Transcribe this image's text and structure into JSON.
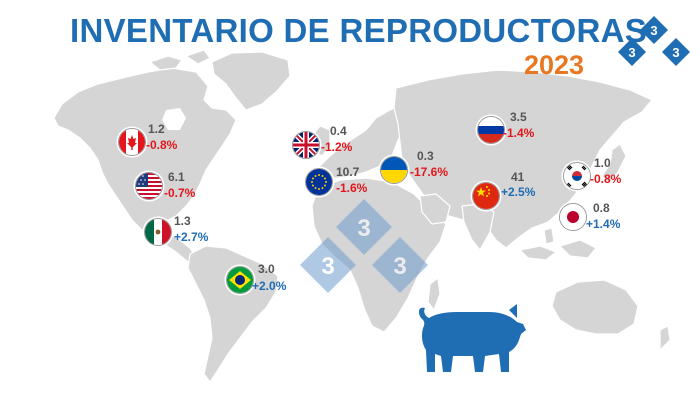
{
  "header": {
    "title": "INVENTARIO DE REPRODUCTORAS",
    "year": "2023"
  },
  "logo": {
    "digits": [
      "3",
      "3",
      "3"
    ],
    "color": "#1f6db3"
  },
  "colors": {
    "map_land": "#d5d5d5",
    "negative": "#e3161b",
    "positive": "#1f6db3",
    "value": "#555555",
    "title": "#1f6db3",
    "year": "#e87722"
  },
  "icons": {
    "pig": "pig-silhouette-icon",
    "watermark": "333-watermark-icon"
  },
  "countries": [
    {
      "country": "Canada",
      "flag": "canada-flag-icon",
      "value": "1.2",
      "change": "-0.8%",
      "direction": "negative"
    },
    {
      "country": "United States",
      "flag": "usa-flag-icon",
      "value": "6.1",
      "change": "-0.7%",
      "direction": "negative"
    },
    {
      "country": "Mexico",
      "flag": "mexico-flag-icon",
      "value": "1.3",
      "change": "+2.7%",
      "direction": "positive"
    },
    {
      "country": "Brazil",
      "flag": "brazil-flag-icon",
      "value": "3.0",
      "change": "+2.0%",
      "direction": "positive"
    },
    {
      "country": "United Kingdom",
      "flag": "uk-flag-icon",
      "value": "0.4",
      "change": "-1.2%",
      "direction": "negative"
    },
    {
      "country": "European Union",
      "flag": "eu-flag-icon",
      "value": "10.7",
      "change": "-1.6%",
      "direction": "negative"
    },
    {
      "country": "Ukraine",
      "flag": "ukraine-flag-icon",
      "value": "0.3",
      "change": "-17.6%",
      "direction": "negative"
    },
    {
      "country": "Russia",
      "flag": "russia-flag-icon",
      "value": "3.5",
      "change": "-1.4%",
      "direction": "negative"
    },
    {
      "country": "China",
      "flag": "china-flag-icon",
      "value": "41",
      "change": "+2.5%",
      "direction": "positive"
    },
    {
      "country": "South Korea",
      "flag": "south-korea-flag-icon",
      "value": "1.0",
      "change": "-0.8%",
      "direction": "negative"
    },
    {
      "country": "Japan",
      "flag": "japan-flag-icon",
      "value": "0.8",
      "change": "+1.4%",
      "direction": "positive"
    }
  ]
}
